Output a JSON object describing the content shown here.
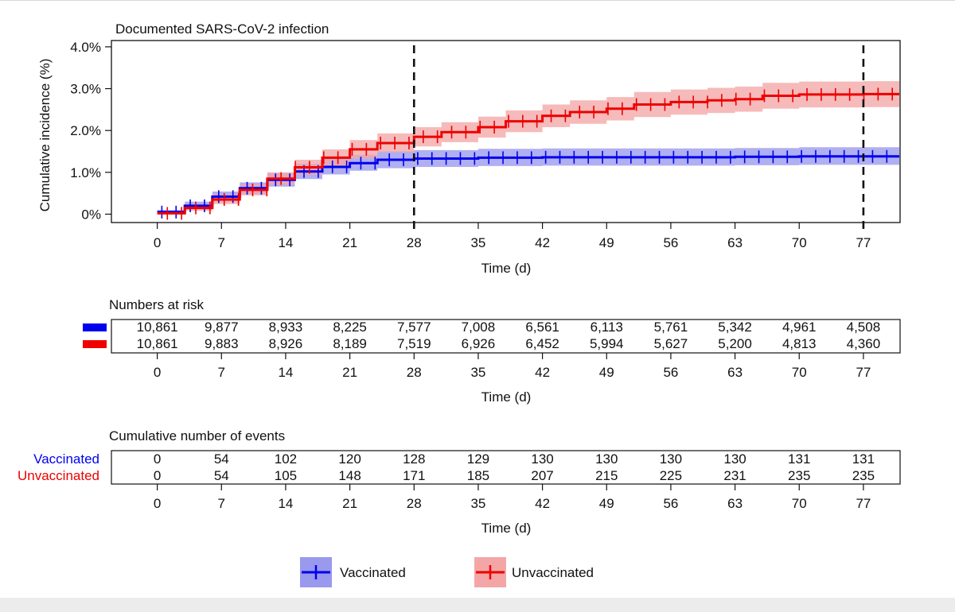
{
  "chart_data": {
    "type": "line",
    "subtype": "kaplan-meier-cumulative-incidence",
    "title": "Documented SARS-CoV-2 infection",
    "xlabel": "Time (d)",
    "ylabel": "Cumulative incidence (%)",
    "xlim": [
      -5,
      81
    ],
    "ylim": [
      -0.2,
      4.15
    ],
    "xticks": [
      0,
      7,
      14,
      21,
      28,
      35,
      42,
      49,
      56,
      63,
      70,
      77
    ],
    "yticks": [
      {
        "value": 0,
        "label": "0%"
      },
      {
        "value": 1,
        "label": "1.0%"
      },
      {
        "value": 2,
        "label": "2.0%"
      },
      {
        "value": 3,
        "label": "3.0%"
      },
      {
        "value": 4,
        "label": "4.0%"
      }
    ],
    "reference_lines_x": [
      28,
      77
    ],
    "grid": false,
    "legend_position": "bottom",
    "series": [
      {
        "name": "Vaccinated",
        "color": "#0000ee",
        "band_color": "#9999ee",
        "x": [
          0,
          3,
          6,
          9,
          12,
          15,
          18,
          21,
          24,
          28,
          35,
          42,
          49,
          56,
          63,
          70,
          77,
          81
        ],
        "y": [
          0.05,
          0.2,
          0.42,
          0.62,
          0.82,
          1.02,
          1.13,
          1.22,
          1.3,
          1.33,
          1.35,
          1.36,
          1.36,
          1.36,
          1.37,
          1.38,
          1.38,
          1.38
        ],
        "lower": [
          0.0,
          0.12,
          0.3,
          0.48,
          0.66,
          0.84,
          0.95,
          1.04,
          1.1,
          1.13,
          1.15,
          1.16,
          1.16,
          1.16,
          1.17,
          1.18,
          1.18,
          1.18
        ],
        "upper": [
          0.1,
          0.3,
          0.54,
          0.76,
          0.98,
          1.2,
          1.32,
          1.42,
          1.5,
          1.53,
          1.56,
          1.57,
          1.57,
          1.57,
          1.58,
          1.6,
          1.6,
          1.6
        ]
      },
      {
        "name": "Unvaccinated",
        "color": "#ee0000",
        "band_color": "#f4a6a6",
        "x": [
          0,
          3,
          6,
          9,
          12,
          15,
          18,
          21,
          24,
          28,
          31,
          35,
          38,
          42,
          45,
          49,
          52,
          56,
          60,
          63,
          66,
          70,
          77,
          81
        ],
        "y": [
          0.02,
          0.15,
          0.35,
          0.58,
          0.85,
          1.12,
          1.35,
          1.55,
          1.7,
          1.85,
          1.96,
          2.08,
          2.22,
          2.35,
          2.44,
          2.52,
          2.62,
          2.68,
          2.72,
          2.75,
          2.83,
          2.86,
          2.87,
          2.87
        ],
        "lower": [
          0.0,
          0.08,
          0.24,
          0.45,
          0.7,
          0.94,
          1.15,
          1.33,
          1.48,
          1.62,
          1.72,
          1.83,
          1.96,
          2.08,
          2.16,
          2.24,
          2.32,
          2.38,
          2.42,
          2.45,
          2.52,
          2.55,
          2.56,
          2.56
        ],
        "upper": [
          0.06,
          0.24,
          0.48,
          0.72,
          1.0,
          1.3,
          1.55,
          1.77,
          1.93,
          2.08,
          2.2,
          2.33,
          2.48,
          2.62,
          2.72,
          2.8,
          2.92,
          2.98,
          3.02,
          3.05,
          3.14,
          3.17,
          3.18,
          3.18
        ]
      }
    ],
    "risk_table": {
      "title": "Numbers at risk",
      "xlabel": "Time (d)",
      "times": [
        0,
        7,
        14,
        21,
        28,
        35,
        42,
        49,
        56,
        63,
        70,
        77
      ],
      "rows": [
        {
          "name": "Vaccinated",
          "color": "#0000ee",
          "values": [
            "10,861",
            "9,877",
            "8,933",
            "8,225",
            "7,577",
            "7,008",
            "6,561",
            "6,113",
            "5,761",
            "5,342",
            "4,961",
            "4,508"
          ]
        },
        {
          "name": "Unvaccinated",
          "color": "#ee0000",
          "values": [
            "10,861",
            "9,883",
            "8,926",
            "8,189",
            "7,519",
            "6,926",
            "6,452",
            "5,994",
            "5,627",
            "5,200",
            "4,813",
            "4,360"
          ]
        }
      ]
    },
    "events_table": {
      "title": "Cumulative number of events",
      "xlabel": "Time (d)",
      "times": [
        0,
        7,
        14,
        21,
        28,
        35,
        42,
        49,
        56,
        63,
        70,
        77
      ],
      "rows": [
        {
          "name": "Vaccinated",
          "color": "#0000ee",
          "values": [
            "0",
            "54",
            "102",
            "120",
            "128",
            "129",
            "130",
            "130",
            "130",
            "130",
            "131",
            "131"
          ]
        },
        {
          "name": "Unvaccinated",
          "color": "#ee0000",
          "values": [
            "0",
            "54",
            "105",
            "148",
            "171",
            "185",
            "207",
            "215",
            "225",
            "231",
            "235",
            "235"
          ]
        }
      ]
    },
    "legend": [
      {
        "label": "Vaccinated",
        "color": "#0000ee",
        "band_color": "#9999ee"
      },
      {
        "label": "Unvaccinated",
        "color": "#ee0000",
        "band_color": "#f4a6a6"
      }
    ]
  }
}
